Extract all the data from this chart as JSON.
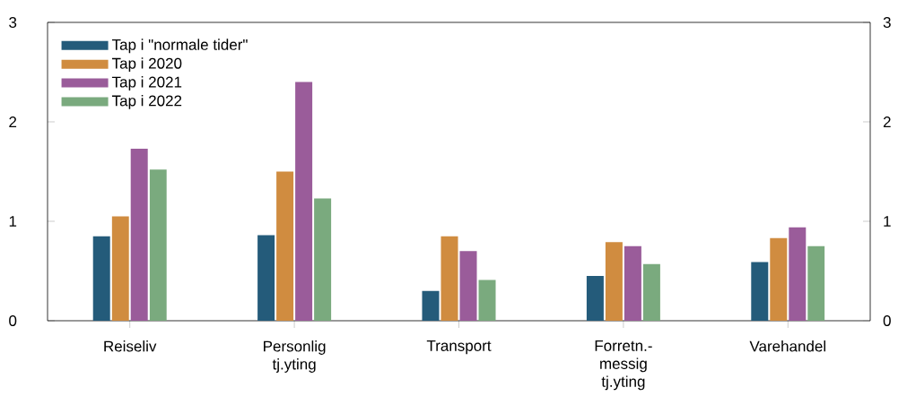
{
  "chart_data": {
    "type": "bar",
    "categories": [
      "Reiseliv",
      "Personlig tj.yting",
      "Transport",
      "Forretn.-messig tj.yting",
      "Varehandel"
    ],
    "series": [
      {
        "name": "Tap i \"normale tider\"",
        "color": "#245b7a",
        "values": [
          0.85,
          0.86,
          0.3,
          0.45,
          0.59
        ]
      },
      {
        "name": "Tap i 2020",
        "color": "#d08c40",
        "values": [
          1.05,
          1.5,
          0.85,
          0.79,
          0.83
        ]
      },
      {
        "name": "Tap i 2021",
        "color": "#9a5c9a",
        "values": [
          1.73,
          2.4,
          0.7,
          0.75,
          0.94
        ]
      },
      {
        "name": "Tap i 2022",
        "color": "#7aaa7e",
        "values": [
          1.52,
          1.23,
          0.41,
          0.57,
          0.75
        ]
      }
    ],
    "ylim": [
      0,
      3
    ],
    "yticks": [
      0,
      1,
      2,
      3
    ],
    "y2lim": [
      0,
      3
    ],
    "y2ticks": [
      0,
      1,
      2,
      3
    ],
    "legend": "top left"
  }
}
